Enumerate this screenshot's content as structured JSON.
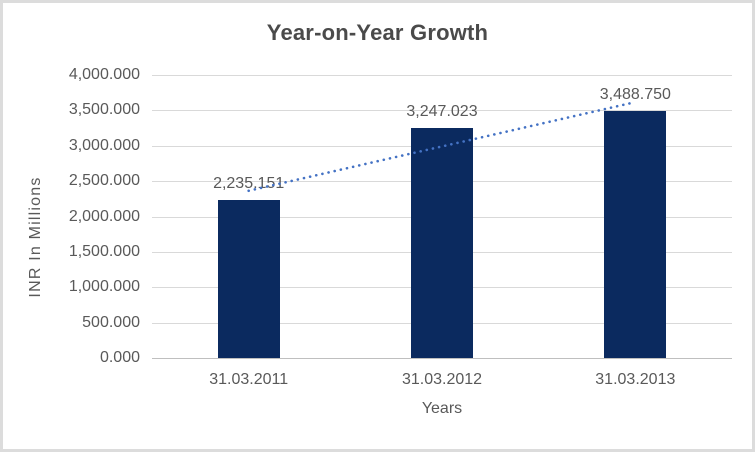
{
  "frame": {
    "background": "#ffffff",
    "border_color": "#dcdcdc"
  },
  "chart_data": {
    "type": "bar",
    "title": "Year-on-Year Growth",
    "xlabel": "Years",
    "ylabel": "INR In Millions",
    "categories": [
      "31.03.2011",
      "31.03.2012",
      "31.03.2013"
    ],
    "values": [
      2235.151,
      3247.023,
      3488.75
    ],
    "data_labels": [
      "2,235.151",
      "3,247.023",
      "3,488.750"
    ],
    "ylim": [
      0,
      4000
    ],
    "ytick_step": 500,
    "ytick_labels": [
      "4,000.000",
      "3,500.000",
      "3,000.000",
      "2,500.000",
      "2,000.000",
      "1,500.000",
      "1,000.000",
      "500.000",
      "0.000"
    ],
    "grid": true,
    "legend": "none",
    "trendline": {
      "type": "linear",
      "style": "dotted",
      "color": "#4472C4"
    },
    "colors": {
      "bar": "#0b2a5f",
      "gridline": "#d9d9d9",
      "axis_line": "#bfbfbf",
      "tick_text": "#595959",
      "title_text": "#4a4a4a"
    }
  }
}
